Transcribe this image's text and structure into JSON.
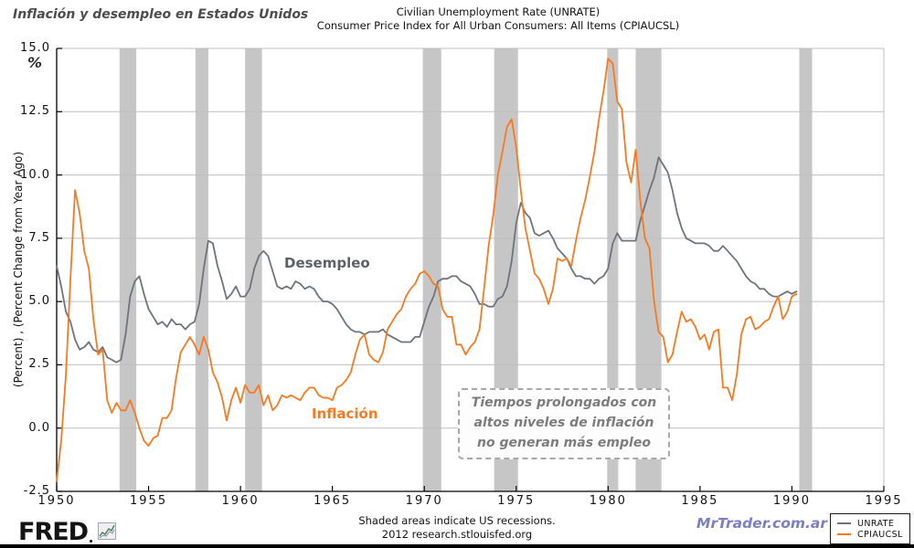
{
  "header": {
    "title_left": "Inflación y desempleo en Estados Unidos",
    "title_center_line1": "Civilian Unemployment Rate (UNRATE)",
    "title_center_line2": "Consumer Price Index for All Urban Consumers: All Items (CPIAUCSL)"
  },
  "axes": {
    "y_unit_symbol": "%",
    "y_axis_label": "(Percent) , (Percent Change from Year Ago)"
  },
  "labels": {
    "unemployment_series_label": "Desempleo",
    "inflation_series_label": "Inflación",
    "callout_line1": "Tiempos prolongados con",
    "callout_line2": "altos niveles de inflación",
    "callout_line3": "no generan más empleo"
  },
  "legend": {
    "items": [
      {
        "label": "UNRATE",
        "color": "#6f747a"
      },
      {
        "label": "CPIAUCSL",
        "color": "#f8791f"
      }
    ]
  },
  "footer": {
    "note_line1": "Shaded areas indicate US recessions.",
    "note_line2": "2012 research.stlouisfed.org",
    "logo_text": "FRED",
    "watermark": "MrTrader.com.ar"
  },
  "colors": {
    "unemployment_line": "#6f747a",
    "inflation_line": "#f8791f",
    "recession_band": "#c6c6c6",
    "gridline": "#bfbfbf",
    "axis_spine": "#000000",
    "watermark_blue": "#7a7fc1",
    "callout_text": "#7c7c7c"
  },
  "chart_data": {
    "type": "line",
    "title": "Civilian Unemployment Rate (UNRATE) and Consumer Price Index for All Urban Consumers: All Items (CPIAUCSL)",
    "xlabel": "",
    "ylabel": "(Percent) , (Percent Change from Year Ago)",
    "x_start": 1950,
    "x_step_years": 0.25,
    "xlim": [
      1950,
      1995
    ],
    "ylim": [
      -2.5,
      15.0
    ],
    "x_ticks": [
      1950,
      1955,
      1960,
      1965,
      1970,
      1975,
      1980,
      1985,
      1990,
      1995
    ],
    "y_ticks": [
      -2.5,
      0.0,
      2.5,
      5.0,
      7.5,
      10.0,
      12.5,
      15.0
    ],
    "grid": "horizontal",
    "legend_position": "bottom-right",
    "recessions": [
      [
        1953.42,
        1954.33
      ],
      [
        1957.55,
        1958.25
      ],
      [
        1960.25,
        1961.17
      ],
      [
        1969.92,
        1970.92
      ],
      [
        1973.8,
        1975.1
      ],
      [
        1979.95,
        1980.55
      ],
      [
        1981.5,
        1982.9
      ],
      [
        1990.4,
        1991.1
      ]
    ],
    "series": [
      {
        "name": "UNRATE",
        "display_label": "Desempleo",
        "color": "#6f747a",
        "values": [
          6.4,
          5.6,
          4.6,
          4.2,
          3.5,
          3.1,
          3.2,
          3.4,
          3.1,
          3.0,
          3.2,
          2.8,
          2.7,
          2.6,
          2.7,
          3.7,
          5.2,
          5.8,
          6.0,
          5.3,
          4.7,
          4.4,
          4.1,
          4.2,
          4.0,
          4.3,
          4.1,
          4.1,
          3.9,
          4.1,
          4.2,
          4.9,
          6.3,
          7.4,
          7.3,
          6.4,
          5.8,
          5.1,
          5.3,
          5.6,
          5.2,
          5.2,
          5.5,
          6.3,
          6.8,
          7.0,
          6.8,
          6.2,
          5.6,
          5.5,
          5.6,
          5.5,
          5.8,
          5.7,
          5.5,
          5.6,
          5.5,
          5.2,
          5.0,
          5.0,
          4.9,
          4.7,
          4.4,
          4.1,
          3.9,
          3.8,
          3.8,
          3.7,
          3.8,
          3.8,
          3.8,
          3.9,
          3.7,
          3.6,
          3.5,
          3.4,
          3.4,
          3.4,
          3.6,
          3.6,
          4.2,
          4.8,
          5.2,
          5.8,
          5.9,
          5.9,
          6.0,
          6.0,
          5.8,
          5.7,
          5.6,
          5.3,
          4.9,
          4.9,
          4.8,
          4.8,
          5.1,
          5.2,
          5.6,
          6.6,
          8.1,
          8.9,
          8.5,
          8.3,
          7.7,
          7.6,
          7.7,
          7.8,
          7.5,
          7.1,
          6.9,
          6.7,
          6.3,
          6.0,
          6.0,
          5.9,
          5.9,
          5.7,
          5.9,
          6.0,
          6.3,
          7.3,
          7.7,
          7.4,
          7.4,
          7.4,
          7.4,
          8.2,
          8.8,
          9.4,
          9.9,
          10.7,
          10.4,
          10.1,
          9.4,
          8.5,
          7.9,
          7.5,
          7.4,
          7.3,
          7.3,
          7.3,
          7.2,
          7.0,
          7.0,
          7.2,
          7.0,
          6.8,
          6.6,
          6.3,
          6.0,
          5.8,
          5.7,
          5.5,
          5.5,
          5.3,
          5.2,
          5.2,
          5.3,
          5.4,
          5.3,
          5.4
        ]
      },
      {
        "name": "CPIAUCSL",
        "display_label": "Inflación",
        "color": "#f8791f",
        "values": [
          -2.1,
          -0.5,
          2.1,
          5.9,
          9.4,
          8.5,
          7.0,
          6.3,
          4.3,
          2.9,
          3.1,
          1.1,
          0.6,
          1.0,
          0.7,
          0.7,
          1.1,
          0.6,
          0.0,
          -0.5,
          -0.7,
          -0.4,
          -0.3,
          0.4,
          0.4,
          0.7,
          2.0,
          3.0,
          3.3,
          3.6,
          3.3,
          2.9,
          3.6,
          3.1,
          2.2,
          1.8,
          1.2,
          0.3,
          1.1,
          1.6,
          1.0,
          1.7,
          1.4,
          1.4,
          1.7,
          0.9,
          1.3,
          0.7,
          0.9,
          1.3,
          1.2,
          1.3,
          1.2,
          1.1,
          1.4,
          1.6,
          1.6,
          1.3,
          1.2,
          1.2,
          1.1,
          1.6,
          1.7,
          1.9,
          2.2,
          2.9,
          3.5,
          3.7,
          2.9,
          2.7,
          2.6,
          3.0,
          3.9,
          4.2,
          4.5,
          4.7,
          5.2,
          5.5,
          5.7,
          6.1,
          6.2,
          6.0,
          5.7,
          5.6,
          4.7,
          4.4,
          4.4,
          3.3,
          3.3,
          2.9,
          3.2,
          3.4,
          3.9,
          5.5,
          7.2,
          8.4,
          10.0,
          10.9,
          11.9,
          12.2,
          11.1,
          9.4,
          7.9,
          7.0,
          6.1,
          5.9,
          5.5,
          4.9,
          5.5,
          6.7,
          6.6,
          6.7,
          6.4,
          7.4,
          8.3,
          9.0,
          9.9,
          10.9,
          12.2,
          13.3,
          14.6,
          14.4,
          12.9,
          12.6,
          10.5,
          9.7,
          11.0,
          9.0,
          7.5,
          7.1,
          5.0,
          3.8,
          3.6,
          2.6,
          2.9,
          3.8,
          4.6,
          4.2,
          4.3,
          4.0,
          3.5,
          3.7,
          3.1,
          3.8,
          3.9,
          1.6,
          1.6,
          1.1,
          2.1,
          3.7,
          4.3,
          4.4,
          3.9,
          4.0,
          4.2,
          4.3,
          4.8,
          5.2,
          4.3,
          4.6,
          5.2,
          5.3
        ]
      }
    ]
  }
}
